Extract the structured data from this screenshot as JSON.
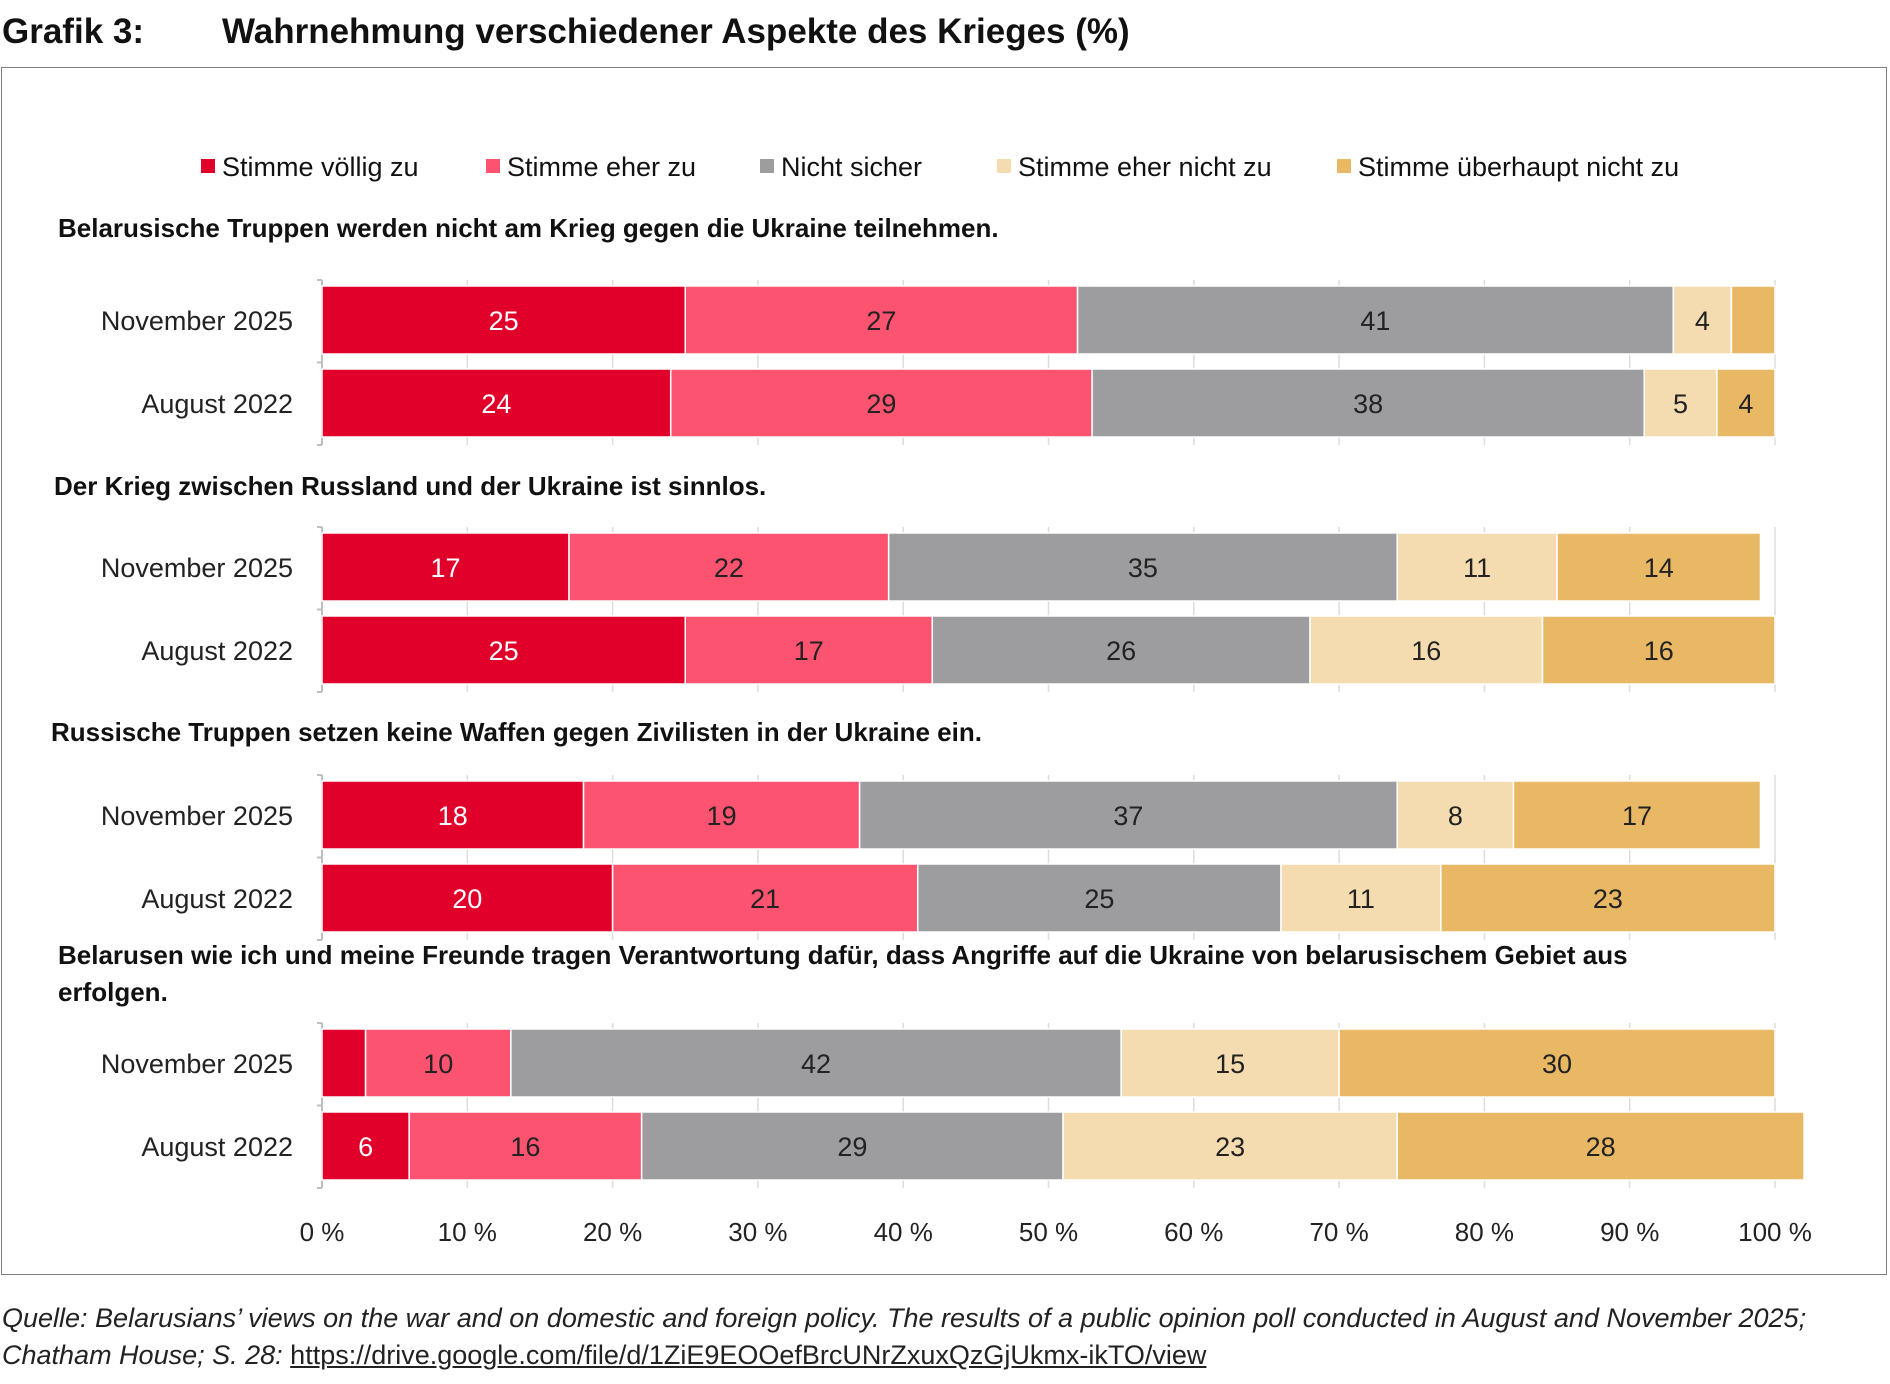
{
  "header": {
    "number": "Grafik 3:",
    "title": "Wahrnehmung verschiedener Aspekte des Krieges (%)"
  },
  "source": {
    "text": "Quelle: Belarusians’ views on the war and on domestic and foreign policy. The results of a public opinion poll conducted in August and November 2025; Chatham House; S. 28:",
    "link": "https://drive.google.com/file/d/1ZiE9EOOefBrcUNrZxuxQzGjUkmx-ikTO/view"
  },
  "colors": {
    "Stimme völlig zu": "#e0002a",
    "Stimme eher zu": "#fc5470",
    "Nicht sicher": "#9d9d9f",
    "Stimme eher nicht zu": "#f5dcb0",
    "Stimme überhaupt nicht zu": "#e8b865"
  },
  "chart_data": {
    "type": "bar",
    "orientation": "horizontal-stacked-100",
    "title": "Wahrnehmung verschiedener Aspekte des Krieges (%)",
    "legend": [
      "Stimme völlig zu",
      "Stimme eher zu",
      "Nicht sicher",
      "Stimme eher nicht zu",
      "Stimme überhaupt nicht zu"
    ],
    "legend_position": "top",
    "xlim": [
      0,
      100
    ],
    "xticks": [
      0,
      10,
      20,
      30,
      40,
      50,
      60,
      70,
      80,
      90,
      100
    ],
    "xtick_labels": [
      "0 %",
      "10 %",
      "20 %",
      "30 %",
      "40 %",
      "50 %",
      "60 %",
      "70 %",
      "80 %",
      "90 %",
      "100 %"
    ],
    "groups": [
      {
        "title": "Belarusische Truppen werden nicht am Krieg gegen die Ukraine teilnehmen.",
        "rows": [
          {
            "label": "November 2025",
            "values": [
              25,
              27,
              41,
              4,
              3
            ],
            "value_labels": [
              "25",
              "27",
              "41",
              "4",
              ""
            ]
          },
          {
            "label": "August 2022",
            "values": [
              24,
              29,
              38,
              5,
              4
            ],
            "value_labels": [
              "24",
              "29",
              "38",
              "5",
              "4"
            ]
          }
        ]
      },
      {
        "title": "Der Krieg zwischen Russland und der Ukraine ist sinnlos.",
        "rows": [
          {
            "label": "November 2025",
            "values": [
              17,
              22,
              35,
              11,
              14
            ],
            "value_labels": [
              "17",
              "22",
              "35",
              "11",
              "14"
            ]
          },
          {
            "label": "August 2022",
            "values": [
              25,
              17,
              26,
              16,
              16
            ],
            "value_labels": [
              "25",
              "17",
              "26",
              "16",
              "16"
            ]
          }
        ]
      },
      {
        "title": "Russische Truppen setzen keine Waffen gegen Zivilisten in der Ukraine ein.",
        "rows": [
          {
            "label": "November 2025",
            "values": [
              18,
              19,
              37,
              8,
              17
            ],
            "value_labels": [
              "18",
              "19",
              "37",
              "8",
              "17"
            ]
          },
          {
            "label": "August 2022",
            "values": [
              20,
              21,
              25,
              11,
              23
            ],
            "value_labels": [
              "20",
              "21",
              "25",
              "11",
              "23"
            ]
          }
        ]
      },
      {
        "title_lines": [
          "Belarusen wie ich und meine Freunde tragen Verantwortung dafür, dass Angriffe auf die Ukraine von belarusischem Gebiet aus",
          "erfolgen."
        ],
        "rows": [
          {
            "label": "November 2025",
            "values": [
              3,
              10,
              42,
              15,
              30
            ],
            "value_labels": [
              "",
              "10",
              "42",
              "15",
              "30"
            ]
          },
          {
            "label": "August 2022",
            "values": [
              6,
              16,
              29,
              23,
              28
            ],
            "value_labels": [
              "6",
              "16",
              "29",
              "23",
              "28"
            ]
          }
        ]
      }
    ]
  }
}
